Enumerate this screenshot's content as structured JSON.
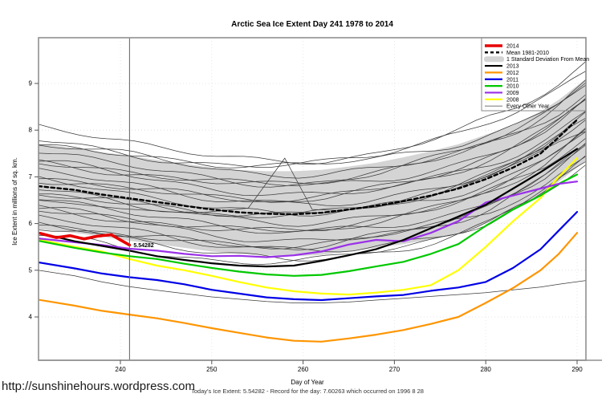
{
  "title": "Arctic Sea Ice Extent Day 241 1978 to 2014",
  "url": "http://sunshinehours.wordpress.com",
  "caption": "Today's Ice Extent: 5.54282  - Record for the day: 7.60263 which occurred on 1996 8 28",
  "annotation": {
    "text": "5.54282",
    "day": 241,
    "value": 5.54282,
    "color": "#e00000"
  },
  "marker_line_day": 241,
  "legend": {
    "entries": [
      {
        "label": "2014",
        "color": "#e80000",
        "kind": "line",
        "width": 3.5
      },
      {
        "label": "Mean 1981-2010",
        "color": "#000000",
        "kind": "dashed-line",
        "width": 2.4
      },
      {
        "label": "1 Standard Deviation From Mean",
        "color": "#d4d4d4",
        "kind": "patch"
      },
      {
        "label": "2013",
        "color": "#000000",
        "kind": "line",
        "width": 2.2
      },
      {
        "label": "2012",
        "color": "#ff9500",
        "kind": "line",
        "width": 2.2
      },
      {
        "label": "2011",
        "color": "#0000e6",
        "kind": "line",
        "width": 2.2
      },
      {
        "label": "2010",
        "color": "#00c800",
        "kind": "line",
        "width": 2.2
      },
      {
        "label": "2009",
        "color": "#9a30e8",
        "kind": "line",
        "width": 2.2
      },
      {
        "label": "2008",
        "color": "#ffff00",
        "kind": "line",
        "width": 2.2
      },
      {
        "label": "Every Other Year",
        "color": "#4a4a4a",
        "kind": "line",
        "width": 0.8
      }
    ]
  },
  "chart_data": {
    "type": "line",
    "title": "Arctic Sea Ice Extent Day 241 1978 to 2014",
    "xlabel": "Day of Year",
    "ylabel": "Ice Extent in millions of sq. km.",
    "xlim": [
      231,
      291
    ],
    "ylim": [
      3.05,
      9.95
    ],
    "x_ticks": [
      240,
      250,
      260,
      270,
      280,
      290
    ],
    "y_ticks": [
      4,
      5,
      6,
      7,
      8,
      9
    ],
    "grid": "dotted",
    "legend_position": "top-right",
    "days": [
      231,
      235,
      238,
      241,
      244,
      247,
      250,
      253,
      256,
      259,
      262,
      265,
      268,
      271,
      274,
      277,
      280,
      283,
      286,
      288,
      290
    ],
    "band": {
      "name": "1 Standard Deviation From Mean",
      "color": "#d4d4d4",
      "upper": [
        7.7,
        7.62,
        7.53,
        7.45,
        7.36,
        7.28,
        7.2,
        7.15,
        7.12,
        7.12,
        7.15,
        7.22,
        7.3,
        7.42,
        7.55,
        7.7,
        7.9,
        8.1,
        8.4,
        8.65,
        8.95
      ],
      "lower": [
        5.88,
        5.8,
        5.72,
        5.63,
        5.56,
        5.48,
        5.4,
        5.35,
        5.32,
        5.3,
        5.33,
        5.4,
        5.48,
        5.56,
        5.66,
        5.8,
        6.0,
        6.3,
        6.6,
        6.9,
        7.2
      ]
    },
    "series": [
      {
        "name": "Mean 1981-2010",
        "color": "#000000",
        "width": 2.4,
        "dash": "4.5 3.5",
        "values": [
          6.8,
          6.72,
          6.62,
          6.54,
          6.46,
          6.38,
          6.3,
          6.24,
          6.21,
          6.2,
          6.23,
          6.3,
          6.38,
          6.48,
          6.6,
          6.75,
          6.95,
          7.2,
          7.5,
          7.85,
          8.22
        ]
      },
      {
        "name": "2012",
        "color": "#ff9500",
        "width": 2.2,
        "values": [
          4.37,
          4.24,
          4.13,
          4.05,
          3.97,
          3.87,
          3.76,
          3.66,
          3.56,
          3.49,
          3.47,
          3.54,
          3.62,
          3.72,
          3.85,
          4.0,
          4.3,
          4.62,
          5.0,
          5.35,
          5.8
        ]
      },
      {
        "name": "2011",
        "color": "#0000e6",
        "width": 2.2,
        "values": [
          5.17,
          5.04,
          4.93,
          4.85,
          4.79,
          4.7,
          4.58,
          4.5,
          4.42,
          4.38,
          4.36,
          4.4,
          4.44,
          4.47,
          4.56,
          4.63,
          4.75,
          5.05,
          5.45,
          5.85,
          6.25
        ]
      },
      {
        "name": "2008",
        "color": "#ffff00",
        "width": 2.2,
        "values": [
          5.66,
          5.5,
          5.4,
          5.24,
          5.1,
          5.0,
          4.88,
          4.75,
          4.63,
          4.55,
          4.5,
          4.48,
          4.52,
          4.58,
          4.68,
          5.0,
          5.5,
          6.05,
          6.55,
          7.0,
          7.4
        ]
      },
      {
        "name": "2010",
        "color": "#00c800",
        "width": 2.2,
        "values": [
          5.63,
          5.48,
          5.38,
          5.3,
          5.24,
          5.14,
          5.05,
          4.97,
          4.91,
          4.88,
          4.9,
          4.98,
          5.08,
          5.18,
          5.35,
          5.56,
          5.95,
          6.3,
          6.6,
          6.85,
          7.05
        ]
      },
      {
        "name": "2009",
        "color": "#9a30e8",
        "width": 2.2,
        "values": [
          5.68,
          5.6,
          5.54,
          5.46,
          5.42,
          5.35,
          5.3,
          5.31,
          5.28,
          5.32,
          5.4,
          5.55,
          5.65,
          5.62,
          5.8,
          6.05,
          6.45,
          6.6,
          6.75,
          6.85,
          6.9
        ]
      },
      {
        "name": "2013",
        "color": "#000000",
        "width": 2.2,
        "values": [
          5.8,
          5.62,
          5.52,
          5.42,
          5.3,
          5.22,
          5.15,
          5.1,
          5.08,
          5.1,
          5.2,
          5.32,
          5.45,
          5.65,
          5.9,
          6.15,
          6.4,
          6.75,
          7.1,
          7.35,
          7.6
        ]
      }
    ],
    "series_2014": {
      "name": "2014",
      "color": "#e80000",
      "width": 3.6,
      "days": [
        231.2,
        233,
        234.5,
        236,
        237.5,
        239,
        240,
        241
      ],
      "values": [
        5.79,
        5.7,
        5.74,
        5.67,
        5.73,
        5.76,
        5.65,
        5.54
      ]
    },
    "special_lines": [
      {
        "name": "spike-year-line",
        "days": [
          231,
          240,
          248,
          254,
          258,
          261,
          264,
          268,
          272,
          276,
          280,
          284,
          288,
          291
        ],
        "values": [
          6.5,
          6.32,
          6.22,
          6.33,
          7.4,
          6.3,
          6.28,
          6.35,
          6.5,
          6.7,
          7.0,
          7.35,
          7.75,
          7.98
        ]
      },
      {
        "name": "lowest-year-line",
        "days": [
          231,
          235,
          238,
          241,
          244,
          247,
          250,
          253,
          256,
          259,
          262,
          265,
          268,
          271,
          274,
          277,
          280,
          283,
          286,
          288,
          291
        ],
        "values": [
          5.0,
          4.88,
          4.75,
          4.65,
          4.57,
          4.5,
          4.43,
          4.38,
          4.33,
          4.3,
          4.3,
          4.32,
          4.36,
          4.4,
          4.44,
          4.48,
          4.52,
          4.58,
          4.64,
          4.7,
          4.78
        ]
      }
    ],
    "background_lines": {
      "note": "Every Other Year 1978-2007 thin lines, offsets are fractions of the std-dev band half-width from band center",
      "color": "#3c3c3c",
      "width": 0.75,
      "offsets": [
        1.32,
        1.15,
        1.02,
        0.92,
        0.8,
        0.68,
        0.58,
        0.48,
        0.38,
        0.28,
        0.18,
        0.08,
        -0.02,
        -0.12,
        -0.22,
        -0.32,
        -0.42,
        -0.52,
        -0.62,
        -0.72,
        -0.82,
        -0.92,
        -1.0,
        -1.1
      ]
    }
  }
}
